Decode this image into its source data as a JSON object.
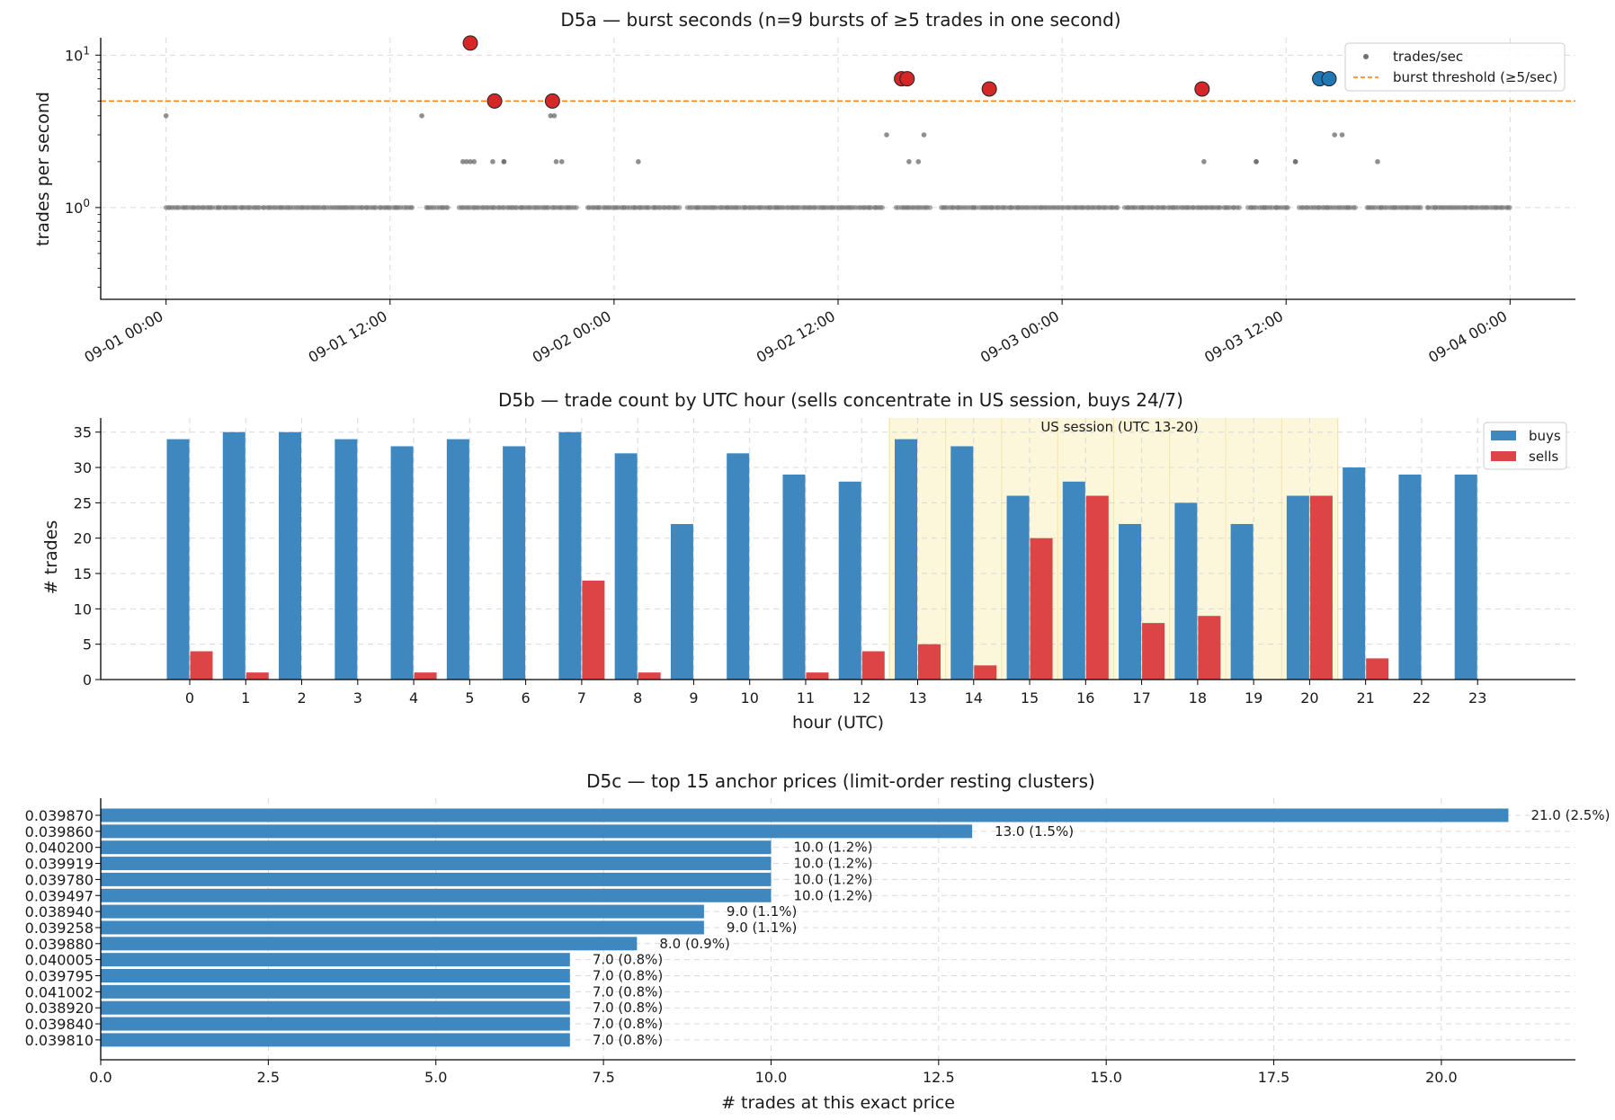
{
  "chart_data": [
    {
      "type": "scatter",
      "title": "D5a — burst seconds (n=9 bursts of ≥5 trades in one second)",
      "xlabel": "",
      "ylabel": "trades per second",
      "yscale": "log",
      "ylim": [
        0.25,
        13
      ],
      "x_ticks": [
        "09-01 00:00",
        "09-01 12:00",
        "09-02 00:00",
        "09-02 12:00",
        "09-03 00:00",
        "09-03 12:00",
        "09-04 00:00"
      ],
      "x_tick_hours": [
        0,
        12,
        24,
        36,
        48,
        60,
        72
      ],
      "xlim_hours": [
        -3.5,
        75.5
      ],
      "y_ticks": [
        {
          "value": 1,
          "base": "10",
          "exp": "0"
        },
        {
          "value": 10,
          "base": "10",
          "exp": "1"
        }
      ],
      "threshold": 5,
      "legend": {
        "position": "top-right",
        "entries": [
          "trades/sec",
          "burst threshold (≥5/sec)"
        ]
      },
      "background_band": [
        0,
        72
      ],
      "background_gaps": [
        [
          13.2,
          13.9
        ],
        [
          15.2,
          15.6
        ],
        [
          22.0,
          22.5
        ],
        [
          27.5,
          27.9
        ],
        [
          38.5,
          39.0
        ],
        [
          41.0,
          41.4
        ],
        [
          51.0,
          51.3
        ],
        [
          57.5,
          57.9
        ],
        [
          60.2,
          60.6
        ],
        [
          63.8,
          64.2
        ],
        [
          67.2,
          67.5
        ]
      ],
      "background_points": [
        {
          "h": 0.0,
          "v": 4
        },
        {
          "h": 13.7,
          "v": 4
        },
        {
          "h": 15.9,
          "v": 2
        },
        {
          "h": 16.1,
          "v": 2
        },
        {
          "h": 16.3,
          "v": 2
        },
        {
          "h": 16.5,
          "v": 2
        },
        {
          "h": 17.5,
          "v": 2
        },
        {
          "h": 18.1,
          "v": 2
        },
        {
          "h": 18.1,
          "v": 2
        },
        {
          "h": 20.6,
          "v": 4
        },
        {
          "h": 20.8,
          "v": 4
        },
        {
          "h": 20.9,
          "v": 2
        },
        {
          "h": 21.2,
          "v": 2
        },
        {
          "h": 25.3,
          "v": 2
        },
        {
          "h": 38.6,
          "v": 3
        },
        {
          "h": 39.8,
          "v": 2
        },
        {
          "h": 40.3,
          "v": 2
        },
        {
          "h": 40.6,
          "v": 3
        },
        {
          "h": 55.6,
          "v": 2
        },
        {
          "h": 58.4,
          "v": 2
        },
        {
          "h": 58.4,
          "v": 2
        },
        {
          "h": 60.5,
          "v": 2
        },
        {
          "h": 60.5,
          "v": 2
        },
        {
          "h": 62.6,
          "v": 3
        },
        {
          "h": 63.0,
          "v": 3
        },
        {
          "h": 64.9,
          "v": 2
        }
      ],
      "bursts": [
        {
          "h": 16.3,
          "v": 12,
          "color": "#d62728"
        },
        {
          "h": 17.6,
          "v": 5,
          "color": "#d62728"
        },
        {
          "h": 20.7,
          "v": 5,
          "color": "#d62728"
        },
        {
          "h": 39.4,
          "v": 7,
          "color": "#d62728"
        },
        {
          "h": 39.7,
          "v": 7,
          "color": "#d62728"
        },
        {
          "h": 44.1,
          "v": 6,
          "color": "#d62728"
        },
        {
          "h": 55.5,
          "v": 6,
          "color": "#d62728"
        },
        {
          "h": 61.8,
          "v": 7,
          "color": "#1f77b4"
        },
        {
          "h": 62.3,
          "v": 7,
          "color": "#1f77b4"
        }
      ]
    },
    {
      "type": "bar",
      "title": "D5b — trade count by UTC hour (sells concentrate in US session, buys 24/7)",
      "xlabel": "hour (UTC)",
      "ylabel": "# trades",
      "ylim": [
        0,
        37
      ],
      "y_ticks": [
        0,
        5,
        10,
        15,
        20,
        25,
        30,
        35
      ],
      "categories": [
        "0",
        "1",
        "2",
        "3",
        "4",
        "5",
        "6",
        "7",
        "8",
        "9",
        "10",
        "11",
        "12",
        "13",
        "14",
        "15",
        "16",
        "17",
        "18",
        "19",
        "20",
        "21",
        "22",
        "23"
      ],
      "series": [
        {
          "name": "buys",
          "color": "#3f88bf",
          "values": [
            34,
            35,
            35,
            34,
            33,
            34,
            33,
            35,
            32,
            22,
            32,
            29,
            28,
            34,
            33,
            26,
            28,
            22,
            25,
            22,
            26,
            30,
            29,
            29
          ]
        },
        {
          "name": "sells",
          "color": "#dc4446",
          "values": [
            4,
            1,
            0,
            0,
            1,
            0,
            0,
            14,
            1,
            0,
            0,
            1,
            4,
            5,
            2,
            20,
            26,
            8,
            9,
            0,
            26,
            3,
            0,
            0
          ]
        }
      ],
      "highlight": {
        "label": "US session (UTC 13-20)",
        "from_hour": 13,
        "to_hour": 20,
        "color": "#fbf3cf"
      },
      "legend": {
        "position": "top-right",
        "entries": [
          "buys",
          "sells"
        ]
      }
    },
    {
      "type": "bar",
      "orientation": "horizontal",
      "title": "D5c — top 15 anchor prices (limit-order resting clusters)",
      "xlabel": "# trades at this exact price",
      "ylabel": "",
      "xlim": [
        0,
        22
      ],
      "x_ticks": [
        "0.0",
        "2.5",
        "5.0",
        "7.5",
        "10.0",
        "12.5",
        "15.0",
        "17.5",
        "20.0"
      ],
      "color": "#3f88bf",
      "categories": [
        "0.039870",
        "0.039860",
        "0.040200",
        "0.039919",
        "0.039780",
        "0.039497",
        "0.038940",
        "0.039258",
        "0.039880",
        "0.040005",
        "0.039795",
        "0.041002",
        "0.038920",
        "0.039840",
        "0.039810"
      ],
      "values": [
        21,
        13,
        10,
        10,
        10,
        10,
        9,
        9,
        8,
        7,
        7,
        7,
        7,
        7,
        7
      ],
      "labels": [
        "21.0 (2.5%)",
        "13.0 (1.5%)",
        "10.0 (1.2%)",
        "10.0 (1.2%)",
        "10.0 (1.2%)",
        "10.0 (1.2%)",
        "9.0 (1.1%)",
        "9.0 (1.1%)",
        "8.0 (0.9%)",
        "7.0 (0.8%)",
        "7.0 (0.8%)",
        "7.0 (0.8%)",
        "7.0 (0.8%)",
        "7.0 (0.8%)",
        "7.0 (0.8%)"
      ]
    }
  ]
}
